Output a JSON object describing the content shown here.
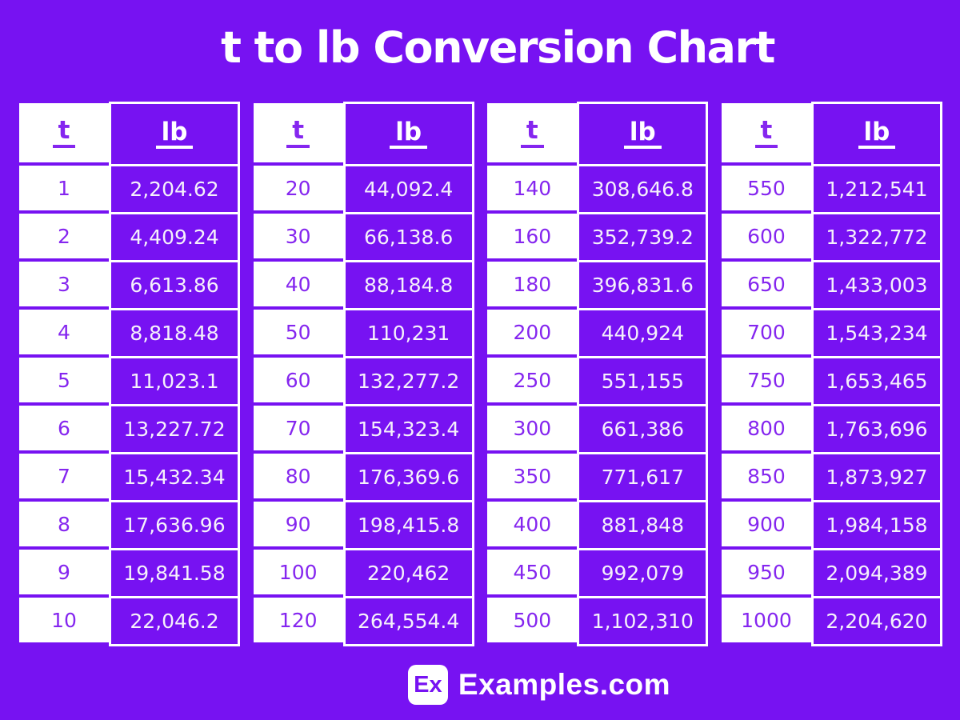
{
  "title": "t to lb Conversion Chart",
  "columns": {
    "t_label": "t",
    "lb_label": "lb"
  },
  "groups": [
    {
      "t": [
        "1",
        "2",
        "3",
        "4",
        "5",
        "6",
        "7",
        "8",
        "9",
        "10"
      ],
      "lb": [
        "2,204.62",
        "4,409.24",
        "6,613.86",
        "8,818.48",
        "11,023.1",
        "13,227.72",
        "15,432.34",
        "17,636.96",
        "19,841.58",
        "22,046.2"
      ]
    },
    {
      "t": [
        "20",
        "30",
        "40",
        "50",
        "60",
        "70",
        "80",
        "90",
        "100",
        "120"
      ],
      "lb": [
        "44,092.4",
        "66,138.6",
        "88,184.8",
        "110,231",
        "132,277.2",
        "154,323.4",
        "176,369.6",
        "198,415.8",
        "220,462",
        "264,554.4"
      ]
    },
    {
      "t": [
        "140",
        "160",
        "180",
        "200",
        "250",
        "300",
        "350",
        "400",
        "450",
        "500"
      ],
      "lb": [
        "308,646.8",
        "352,739.2",
        "396,831.6",
        "440,924",
        "551,155",
        "661,386",
        "771,617",
        "881,848",
        "992,079",
        "1,102,310"
      ]
    },
    {
      "t": [
        "550",
        "600",
        "650",
        "700",
        "750",
        "800",
        "850",
        "900",
        "950",
        "1000"
      ],
      "lb": [
        "1,212,541",
        "1,322,772",
        "1,433,003",
        "1,543,234",
        "1,653,465",
        "1,763,696",
        "1,873,927",
        "1,984,158",
        "2,094,389",
        "2,204,620"
      ]
    }
  ],
  "footer": {
    "logo_text": "Ex",
    "site_name": "Examples.com"
  },
  "colors": {
    "background": "#7712F2",
    "cell_purple": "#7712F2",
    "t_text_purple": "#8526EF",
    "lb_text_white": "#F5F0FB",
    "white": "#FFFFFF"
  },
  "chart_data": {
    "type": "table",
    "title": "t to lb Conversion Chart",
    "columns": [
      "t",
      "lb"
    ],
    "rows": [
      [
        1,
        2204.62
      ],
      [
        2,
        4409.24
      ],
      [
        3,
        6613.86
      ],
      [
        4,
        8818.48
      ],
      [
        5,
        11023.1
      ],
      [
        6,
        13227.72
      ],
      [
        7,
        15432.34
      ],
      [
        8,
        17636.96
      ],
      [
        9,
        19841.58
      ],
      [
        10,
        22046.2
      ],
      [
        20,
        44092.4
      ],
      [
        30,
        66138.6
      ],
      [
        40,
        88184.8
      ],
      [
        50,
        110231
      ],
      [
        60,
        132277.2
      ],
      [
        70,
        154323.4
      ],
      [
        80,
        176369.6
      ],
      [
        90,
        198415.8
      ],
      [
        100,
        220462
      ],
      [
        120,
        264554.4
      ],
      [
        140,
        308646.8
      ],
      [
        160,
        352739.2
      ],
      [
        180,
        396831.6
      ],
      [
        200,
        440924
      ],
      [
        250,
        551155
      ],
      [
        300,
        661386
      ],
      [
        350,
        771617
      ],
      [
        400,
        881848
      ],
      [
        450,
        992079
      ],
      [
        500,
        1102310
      ],
      [
        550,
        1212541
      ],
      [
        600,
        1322772
      ],
      [
        650,
        1433003
      ],
      [
        700,
        1543234
      ],
      [
        750,
        1653465
      ],
      [
        800,
        1763696
      ],
      [
        850,
        1873927
      ],
      [
        900,
        1984158
      ],
      [
        950,
        2094389
      ],
      [
        1000,
        2204620
      ]
    ]
  }
}
